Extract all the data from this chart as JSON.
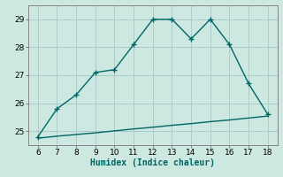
{
  "xlabel": "Humidex (Indice chaleur)",
  "bg_color": "#cce8e0",
  "grid_color": "#aacccc",
  "line_color": "#006666",
  "x_main": [
    6,
    7,
    8,
    9,
    10,
    11,
    12,
    13,
    14,
    15,
    16,
    17,
    18
  ],
  "y_main": [
    24.8,
    25.8,
    26.3,
    27.1,
    27.2,
    28.1,
    29.0,
    29.0,
    28.3,
    29.0,
    28.1,
    26.7,
    25.6
  ],
  "x_base": [
    6,
    7,
    8,
    9,
    10,
    11,
    12,
    13,
    14,
    15,
    16,
    17,
    18
  ],
  "y_base": [
    24.75,
    24.82,
    24.88,
    24.94,
    25.01,
    25.08,
    25.14,
    25.21,
    25.27,
    25.34,
    25.4,
    25.47,
    25.54
  ],
  "xlim": [
    5.5,
    18.5
  ],
  "ylim": [
    24.5,
    29.5
  ],
  "yticks": [
    25,
    26,
    27,
    28,
    29
  ],
  "xticks": [
    6,
    7,
    8,
    9,
    10,
    11,
    12,
    13,
    14,
    15,
    16,
    17,
    18
  ],
  "markersize": 4,
  "linewidth": 1.0,
  "xlabel_fontsize": 7,
  "tick_fontsize": 6.5
}
